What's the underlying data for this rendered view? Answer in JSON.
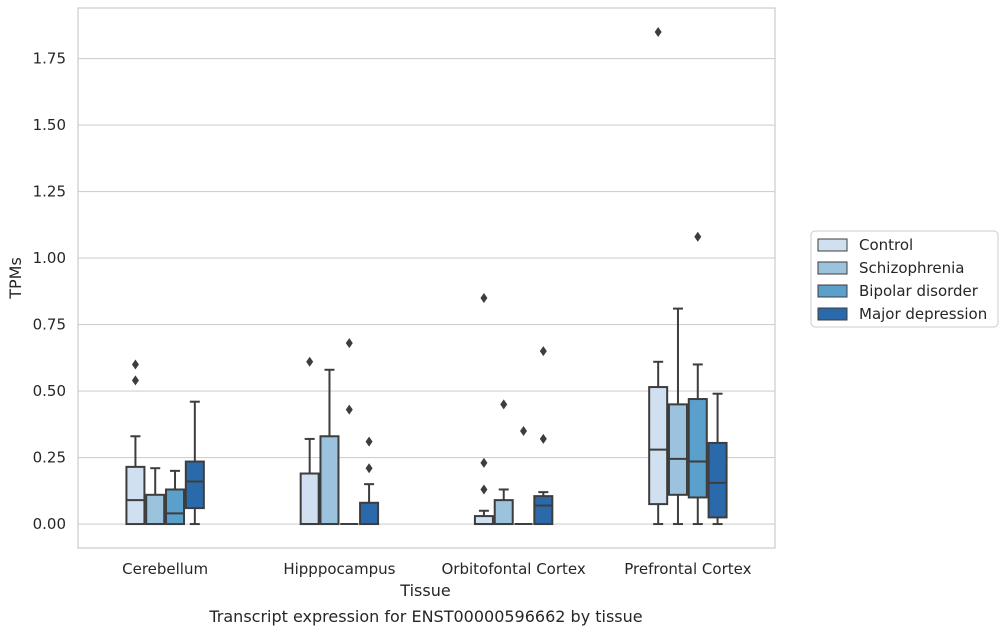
{
  "caption": "Transcript expression for ENST00000596662 by tissue",
  "chart_data": {
    "type": "box",
    "xlabel": "Tissue",
    "ylabel": "TPMs",
    "ylim": [
      -0.09,
      1.94
    ],
    "yticks": [
      "0.00",
      "0.25",
      "0.50",
      "0.75",
      "1.00",
      "1.25",
      "1.50",
      "1.75"
    ],
    "ytick_values": [
      0,
      0.25,
      0.5,
      0.75,
      1.0,
      1.25,
      1.5,
      1.75
    ],
    "grid": "horizontal",
    "legend_position": "right",
    "categories": [
      "Cerebellum",
      "Hipppocampus",
      "Orbitofontal Cortex",
      "Prefrontal Cortex"
    ],
    "series": [
      {
        "name": "Control",
        "color": "#d0e0f0",
        "boxes": [
          {
            "q1": 0.0,
            "median": 0.09,
            "q3": 0.215,
            "whisker_low": 0.0,
            "whisker_high": 0.33,
            "outliers": [
              0.54,
              0.6
            ]
          },
          {
            "q1": 0.0,
            "median": 0.0,
            "q3": 0.19,
            "whisker_low": 0.0,
            "whisker_high": 0.32,
            "outliers": [
              0.61
            ]
          },
          {
            "q1": 0.0,
            "median": 0.0,
            "q3": 0.03,
            "whisker_low": 0.0,
            "whisker_high": 0.05,
            "outliers": [
              0.13,
              0.23,
              0.85
            ]
          },
          {
            "q1": 0.075,
            "median": 0.28,
            "q3": 0.515,
            "whisker_low": 0.0,
            "whisker_high": 0.61,
            "outliers": [
              1.85
            ]
          }
        ]
      },
      {
        "name": "Schizophrenia",
        "color": "#9bc3dd",
        "boxes": [
          {
            "q1": 0.0,
            "median": 0.0,
            "q3": 0.11,
            "whisker_low": 0.0,
            "whisker_high": 0.21,
            "outliers": []
          },
          {
            "q1": 0.0,
            "median": 0.0,
            "q3": 0.33,
            "whisker_low": 0.0,
            "whisker_high": 0.58,
            "outliers": []
          },
          {
            "q1": 0.0,
            "median": 0.0,
            "q3": 0.09,
            "whisker_low": 0.0,
            "whisker_high": 0.13,
            "outliers": [
              0.45
            ]
          },
          {
            "q1": 0.11,
            "median": 0.245,
            "q3": 0.45,
            "whisker_low": 0.0,
            "whisker_high": 0.81,
            "outliers": []
          }
        ]
      },
      {
        "name": "Bipolar disorder",
        "color": "#5b9fcb",
        "boxes": [
          {
            "q1": 0.0,
            "median": 0.04,
            "q3": 0.13,
            "whisker_low": 0.0,
            "whisker_high": 0.2,
            "outliers": []
          },
          {
            "q1": 0.0,
            "median": 0.0,
            "q3": 0.0,
            "whisker_low": 0.0,
            "whisker_high": 0.0,
            "outliers": [
              0.43,
              0.68
            ]
          },
          {
            "q1": 0.0,
            "median": 0.0,
            "q3": 0.0,
            "whisker_low": 0.0,
            "whisker_high": 0.0,
            "outliers": [
              0.35
            ]
          },
          {
            "q1": 0.1,
            "median": 0.235,
            "q3": 0.47,
            "whisker_low": 0.0,
            "whisker_high": 0.6,
            "outliers": [
              1.08
            ]
          }
        ]
      },
      {
        "name": "Major depression",
        "color": "#2a6aab",
        "boxes": [
          {
            "q1": 0.06,
            "median": 0.16,
            "q3": 0.235,
            "whisker_low": 0.0,
            "whisker_high": 0.46,
            "outliers": []
          },
          {
            "q1": 0.0,
            "median": 0.0,
            "q3": 0.08,
            "whisker_low": 0.0,
            "whisker_high": 0.15,
            "outliers": [
              0.21,
              0.31
            ]
          },
          {
            "q1": 0.0,
            "median": 0.07,
            "q3": 0.105,
            "whisker_low": 0.0,
            "whisker_high": 0.12,
            "outliers": [
              0.32,
              0.65
            ]
          },
          {
            "q1": 0.025,
            "median": 0.155,
            "q3": 0.305,
            "whisker_low": 0.0,
            "whisker_high": 0.49,
            "outliers": []
          }
        ]
      }
    ]
  }
}
